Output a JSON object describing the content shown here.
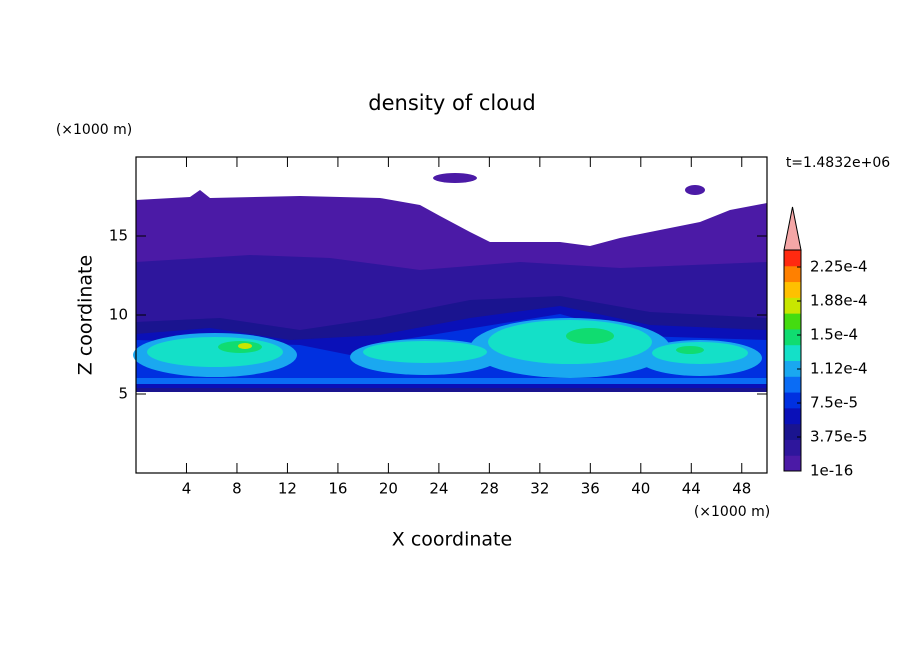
{
  "chart_data": {
    "type": "contour",
    "title": "density of cloud",
    "x_label": "X coordinate",
    "y_label": "Z coordinate",
    "x_unit": "(×1000 m)",
    "y_unit": "(×1000 m)",
    "time_label": "t=1.4832e+06",
    "xlim": [
      0,
      50
    ],
    "ylim": [
      0,
      20
    ],
    "xticks": [
      4,
      8,
      12,
      16,
      20,
      24,
      28,
      32,
      36,
      40,
      44,
      48
    ],
    "yticks": [
      5,
      10,
      15
    ],
    "colorbar": {
      "lim": [
        1e-16,
        0.00024375
      ],
      "colors": [
        "#4b1aa6",
        "#2e169c",
        "#1a148f",
        "#0a10b8",
        "#0030e0",
        "#0a6cf5",
        "#1aa8f0",
        "#14e0c8",
        "#10dc70",
        "#44dc10",
        "#c8e600",
        "#ffc000",
        "#ff8000",
        "#ff2a10"
      ],
      "extend_color": "#f4a6a6",
      "ticks": [
        {
          "value": 1e-16,
          "label": "1e-16"
        },
        {
          "value": 3.75e-05,
          "label": "3.75e-5"
        },
        {
          "value": 7.5e-05,
          "label": "7.5e-5"
        },
        {
          "value": 0.0001125,
          "label": "1.12e-4"
        },
        {
          "value": 0.00015,
          "label": "1.5e-4"
        },
        {
          "value": 0.0001875,
          "label": "1.88e-4"
        },
        {
          "value": 0.000225,
          "label": "2.25e-4"
        }
      ]
    }
  }
}
